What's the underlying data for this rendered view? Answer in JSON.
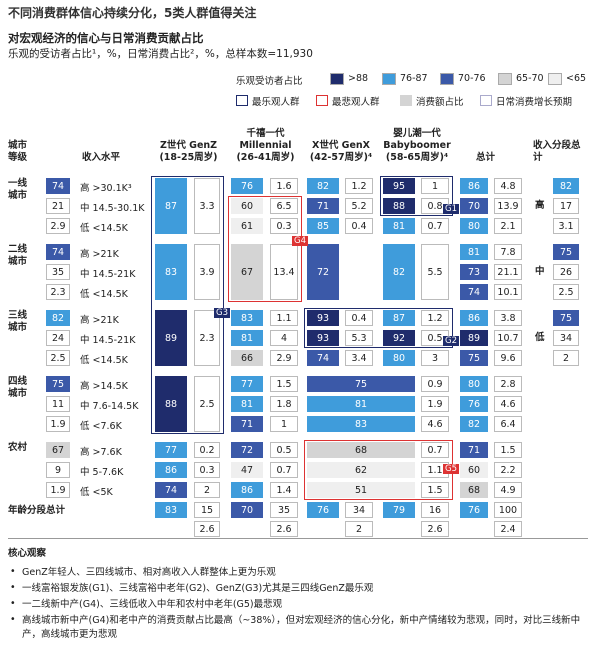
{
  "title": "不同消费群体信心持续分化，5类人群值得关注",
  "subtitle": "对宏观经济的信心与日常消费贡献占比",
  "note": "乐观的受访者占比¹，%，日常消费占比²，%，总样本数=11,930",
  "legend": {
    "title": "乐观受访者占比",
    "bins": [
      {
        "label": ">88",
        "color": "#1f2c6c"
      },
      {
        "label": "76-87",
        "color": "#3f9cdb"
      },
      {
        "label": "70-76",
        "color": "#3b59a8"
      },
      {
        "label": "65-70",
        "color": "#d4d4d4"
      },
      {
        "label": "<65",
        "color": "#efefef"
      }
    ],
    "keys": [
      "最乐观人群",
      "最悲观人群",
      "消费额占比",
      "日常消费增长预期"
    ]
  },
  "headers": {
    "city": "城市等级",
    "income": "收入水平",
    "genz": [
      "Z世代 GenZ",
      "(18-25周岁)"
    ],
    "mill": [
      "千禧一代",
      "Millennial",
      "(26-41周岁)"
    ],
    "genx": [
      "X世代 GenX",
      "(42-57周岁)⁴"
    ],
    "boomer": [
      "婴儿潮一代",
      "Babyboomer",
      "(58-65周岁)⁴"
    ],
    "total": "总计",
    "income_total": "收入分段总计"
  },
  "groups": [
    {
      "city": "一线城市",
      "total": [
        74,
        21,
        2.9
      ],
      "rows": [
        {
          "income": "高 >30.1K³",
          "genz": [
            87,
            3.3
          ],
          "mill": [
            76,
            1.6
          ],
          "genx": [
            82,
            1.2
          ],
          "boomer": [
            95,
            1.0
          ],
          "total": [
            86,
            4.8
          ]
        },
        {
          "income": "中 14.5-30.1K",
          "genz": null,
          "mill": [
            60,
            6.5
          ],
          "genx": [
            71,
            5.2
          ],
          "boomer": [
            88,
            0.8
          ],
          "total": [
            70,
            13.9
          ]
        },
        {
          "income": "低 <14.5K",
          "genz": null,
          "mill": [
            61,
            0.3
          ],
          "genx": [
            85,
            0.4
          ],
          "boomer": [
            81,
            0.7
          ],
          "total": [
            80,
            2.1
          ]
        }
      ]
    },
    {
      "city": "二线城市",
      "total": [
        74,
        35,
        2.3
      ],
      "rows": [
        {
          "income": "高 >21K",
          "genz": [
            83,
            3.9
          ],
          "mill": [
            67,
            13.4
          ],
          "genx": [
            72
          ],
          "boomer": [
            82,
            5.5
          ],
          "total": [
            81,
            7.8
          ]
        },
        {
          "income": "中 14.5-21K",
          "genz": null,
          "mill": null,
          "genx": null,
          "boomer": null,
          "total": [
            73,
            21.1
          ]
        },
        {
          "income": "低 <14.5K",
          "genz": null,
          "mill": null,
          "genx": null,
          "boomer": null,
          "total": [
            74,
            10.1
          ]
        }
      ]
    },
    {
      "city": "三线城市",
      "total": [
        82,
        24,
        2.5
      ],
      "rows": [
        {
          "income": "高 >21K",
          "genz": [
            89,
            2.3
          ],
          "mill": [
            83,
            1.1
          ],
          "genx": [
            93,
            0.4
          ],
          "boomer": [
            87,
            1.2
          ],
          "total": [
            86,
            3.8
          ]
        },
        {
          "income": "中 14.5-21K",
          "genz": null,
          "mill": [
            81,
            4.0
          ],
          "genx": [
            93,
            5.3
          ],
          "boomer": [
            92,
            0.5
          ],
          "total": [
            89,
            10.7
          ]
        },
        {
          "income": "低 <14.5K",
          "genz": null,
          "mill": [
            66,
            2.9
          ],
          "genx": [
            74,
            3.4
          ],
          "boomer": [
            80,
            3.0
          ],
          "total": [
            75,
            9.6
          ]
        }
      ]
    },
    {
      "city": "四线城市",
      "total": [
        75,
        11,
        1.9
      ],
      "rows": [
        {
          "income": "高 >14.5K",
          "genz": [
            88,
            2.5
          ],
          "mill": [
            77,
            1.5
          ],
          "genx_boomer": [
            75,
            0.9
          ],
          "total": [
            80,
            2.8
          ]
        },
        {
          "income": "中 7.6-14.5K",
          "genz": null,
          "mill": [
            81,
            1.8
          ],
          "genx_boomer": [
            81,
            1.9
          ],
          "total": [
            76,
            4.6
          ]
        },
        {
          "income": "低 <7.6K",
          "genz": null,
          "mill": [
            71,
            1.0
          ],
          "genx_boomer": [
            83,
            4.6
          ],
          "total": [
            82,
            6.4
          ]
        }
      ]
    },
    {
      "city": "农村",
      "total": [
        67,
        9,
        1.9
      ],
      "rows": [
        {
          "income": "高 >7.6K",
          "genz": [
            77,
            0.2
          ],
          "mill": [
            72,
            0.5
          ],
          "genx_boomer": [
            68,
            0.7
          ],
          "total": [
            71,
            1.5
          ]
        },
        {
          "income": "中 5-7.6K",
          "genz": [
            86,
            0.3
          ],
          "mill": [
            47,
            0.7
          ],
          "genx_boomer": [
            62,
            1.1
          ],
          "total": [
            60,
            2.2
          ]
        },
        {
          "income": "低 <5K",
          "genz": [
            74,
            2.0
          ],
          "mill": [
            86,
            1.4
          ],
          "genx_boomer": [
            51,
            1.5
          ],
          "total": [
            68,
            4.9
          ]
        }
      ]
    }
  ],
  "income_totals": [
    {
      "label": "高",
      "values": [
        82,
        17,
        3.1
      ]
    },
    {
      "label": "中",
      "values": [
        75,
        26,
        2.5
      ]
    },
    {
      "label": "低",
      "values": [
        75,
        34,
        2.0
      ]
    }
  ],
  "footer": {
    "label": "年龄分段总计",
    "genz": [
      83,
      15,
      2.6
    ],
    "mill": [
      70,
      35,
      2.6
    ],
    "genx": [
      76,
      34,
      2.0
    ],
    "boomer": [
      79,
      16,
      2.6
    ],
    "total": [
      76,
      100,
      2.4
    ]
  },
  "highlights": [
    "G1",
    "G2",
    "G3",
    "G4",
    "G5"
  ],
  "observations": {
    "title": "核心观察",
    "items": [
      "GenZ年轻人、三四线城市、相对高收入人群整体上更为乐观",
      "一线富裕银发族(G1)、三线富裕中老年(G2)、GenZ(G3)尤其是三四线GenZ最乐观",
      "一二线新中产(G4)、三线低收入中年和农村中老年(G5)最悲观",
      "高线城市新中产(G4)和老中产的消费贡献占比最高（~38%），但对宏观经济的信心分化，新中产情绪较为悲观，同时，对比三线新中产，高线城市更为悲观"
    ]
  }
}
